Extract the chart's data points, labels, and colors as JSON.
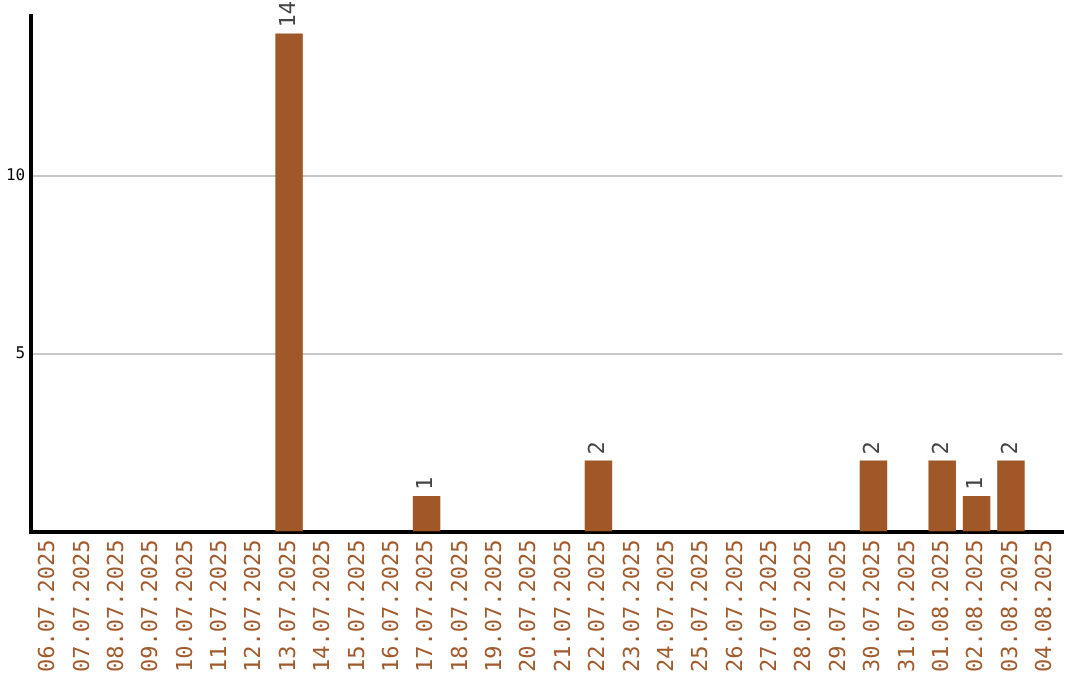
{
  "chart_data": {
    "type": "bar",
    "categories": [
      "06.07.2025",
      "07.07.2025",
      "08.07.2025",
      "09.07.2025",
      "10.07.2025",
      "11.07.2025",
      "12.07.2025",
      "13.07.2025",
      "14.07.2025",
      "15.07.2025",
      "16.07.2025",
      "17.07.2025",
      "18.07.2025",
      "19.07.2025",
      "20.07.2025",
      "21.07.2025",
      "22.07.2025",
      "23.07.2025",
      "24.07.2025",
      "25.07.2025",
      "26.07.2025",
      "27.07.2025",
      "28.07.2025",
      "29.07.2025",
      "30.07.2025",
      "31.07.2025",
      "01.08.2025",
      "02.08.2025",
      "03.08.2025",
      "04.08.2025"
    ],
    "values": [
      0,
      0,
      0,
      0,
      0,
      0,
      0,
      14,
      0,
      0,
      0,
      1,
      0,
      0,
      0,
      0,
      2,
      0,
      0,
      0,
      0,
      0,
      0,
      0,
      2,
      0,
      2,
      1,
      2,
      0
    ],
    "value_labels": [
      null,
      null,
      null,
      null,
      null,
      null,
      null,
      "14",
      null,
      null,
      null,
      "1",
      null,
      null,
      null,
      null,
      "2",
      null,
      null,
      null,
      null,
      null,
      null,
      null,
      "2",
      null,
      "2",
      "1",
      "2",
      null
    ],
    "color": "#a15828",
    "ylim": [
      0,
      14.5
    ],
    "yticks": [
      5,
      10
    ],
    "grid": "y"
  }
}
